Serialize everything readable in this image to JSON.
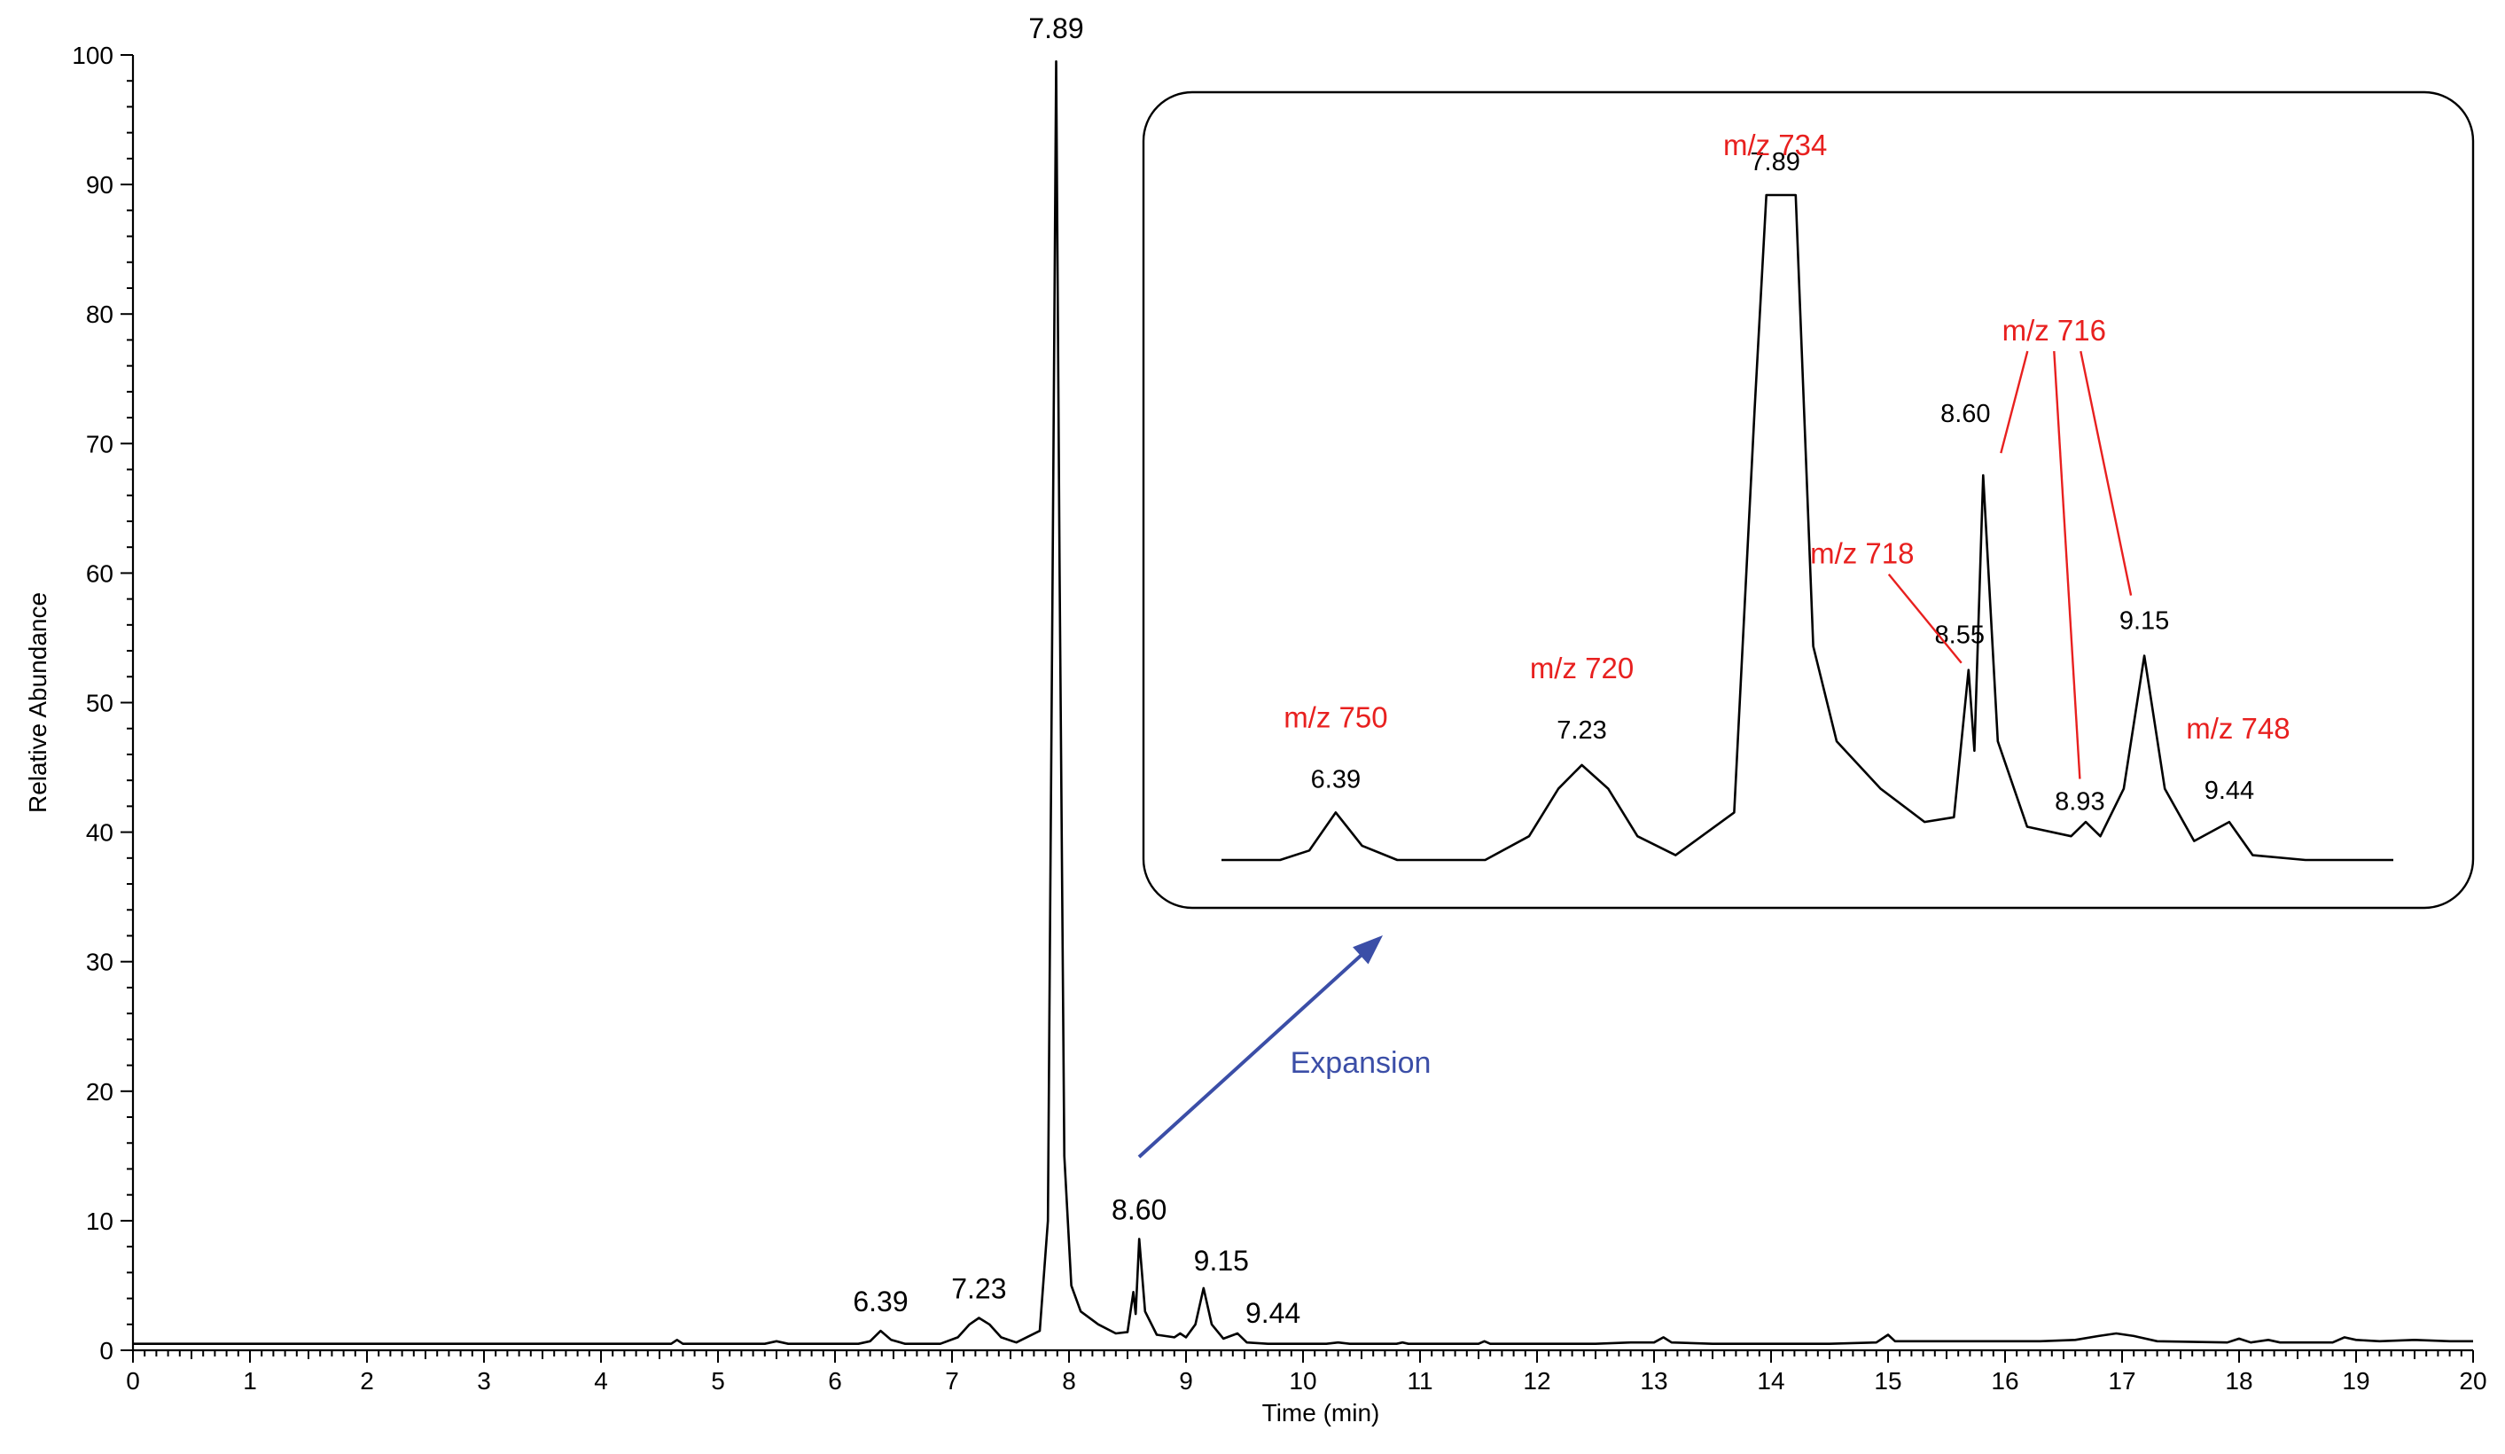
{
  "chart_data": {
    "type": "line",
    "xlabel": "Time (min)",
    "ylabel": "Relative Abundance",
    "xlim": [
      0,
      20
    ],
    "ylim": [
      0,
      100
    ],
    "x_ticks": [
      0,
      1,
      2,
      3,
      4,
      5,
      6,
      7,
      8,
      9,
      10,
      11,
      12,
      13,
      14,
      15,
      16,
      17,
      18,
      19,
      20
    ],
    "y_ticks": [
      0,
      10,
      20,
      30,
      40,
      50,
      60,
      70,
      80,
      90,
      100
    ],
    "grid": false,
    "series": [
      {
        "points": [
          [
            0,
            0.5
          ],
          [
            4.6,
            0.5
          ],
          [
            4.65,
            0.8
          ],
          [
            4.7,
            0.5
          ],
          [
            5.4,
            0.5
          ],
          [
            5.5,
            0.7
          ],
          [
            5.6,
            0.5
          ],
          [
            6.2,
            0.5
          ],
          [
            6.3,
            0.7
          ],
          [
            6.39,
            1.5
          ],
          [
            6.48,
            0.8
          ],
          [
            6.6,
            0.5
          ],
          [
            6.9,
            0.5
          ],
          [
            7.05,
            1.0
          ],
          [
            7.15,
            2.0
          ],
          [
            7.23,
            2.5
          ],
          [
            7.32,
            2.0
          ],
          [
            7.42,
            1.0
          ],
          [
            7.55,
            0.6
          ],
          [
            7.75,
            1.5
          ],
          [
            7.82,
            10
          ],
          [
            7.86,
            60
          ],
          [
            7.89,
            99.5
          ],
          [
            7.92,
            60
          ],
          [
            7.96,
            15
          ],
          [
            8.02,
            5
          ],
          [
            8.1,
            3
          ],
          [
            8.25,
            2
          ],
          [
            8.4,
            1.3
          ],
          [
            8.5,
            1.4
          ],
          [
            8.55,
            4.5
          ],
          [
            8.57,
            2.8
          ],
          [
            8.6,
            8.6
          ],
          [
            8.65,
            3.0
          ],
          [
            8.75,
            1.2
          ],
          [
            8.9,
            1.0
          ],
          [
            8.95,
            1.3
          ],
          [
            9.0,
            1.0
          ],
          [
            9.08,
            2.0
          ],
          [
            9.15,
            4.8
          ],
          [
            9.22,
            2.0
          ],
          [
            9.32,
            0.9
          ],
          [
            9.44,
            1.3
          ],
          [
            9.52,
            0.6
          ],
          [
            9.7,
            0.5
          ],
          [
            10.2,
            0.5
          ],
          [
            10.3,
            0.6
          ],
          [
            10.4,
            0.5
          ],
          [
            10.8,
            0.5
          ],
          [
            10.85,
            0.6
          ],
          [
            10.9,
            0.5
          ],
          [
            11.5,
            0.5
          ],
          [
            11.55,
            0.7
          ],
          [
            11.6,
            0.5
          ],
          [
            12.5,
            0.5
          ],
          [
            12.8,
            0.6
          ],
          [
            13.0,
            0.6
          ],
          [
            13.08,
            1.0
          ],
          [
            13.15,
            0.6
          ],
          [
            13.5,
            0.5
          ],
          [
            14.5,
            0.5
          ],
          [
            14.9,
            0.6
          ],
          [
            15.0,
            1.2
          ],
          [
            15.06,
            0.7
          ],
          [
            15.5,
            0.7
          ],
          [
            16.3,
            0.7
          ],
          [
            16.6,
            0.8
          ],
          [
            16.8,
            1.1
          ],
          [
            16.95,
            1.3
          ],
          [
            17.1,
            1.1
          ],
          [
            17.3,
            0.7
          ],
          [
            17.9,
            0.6
          ],
          [
            18.0,
            0.9
          ],
          [
            18.1,
            0.6
          ],
          [
            18.25,
            0.8
          ],
          [
            18.35,
            0.6
          ],
          [
            18.8,
            0.6
          ],
          [
            18.9,
            1.0
          ],
          [
            19.0,
            0.8
          ],
          [
            19.2,
            0.7
          ],
          [
            19.5,
            0.8
          ],
          [
            19.8,
            0.7
          ],
          [
            20,
            0.7
          ]
        ]
      }
    ],
    "peak_labels": [
      {
        "x": 6.39,
        "label": "6.39"
      },
      {
        "x": 7.23,
        "label": "7.23"
      },
      {
        "x": 7.89,
        "label": "7.89"
      },
      {
        "x": 8.6,
        "label": "8.60"
      },
      {
        "x": 9.15,
        "label": "9.15"
      },
      {
        "x": 9.44,
        "label": "9.44"
      }
    ],
    "inset": {
      "xlim": [
        6.0,
        10.0
      ],
      "ylim": [
        0,
        14
      ],
      "annotation": "Expansion",
      "peak_labels": [
        {
          "x": 6.39,
          "label": "6.39",
          "mz": "m/z 750"
        },
        {
          "x": 7.23,
          "label": "7.23",
          "mz": "m/z 720"
        },
        {
          "x": 7.89,
          "label": "7.89",
          "mz": "m/z 734"
        },
        {
          "x": 8.55,
          "label": "8.55",
          "mz": "m/z 718"
        },
        {
          "x": 8.6,
          "label": "8.60",
          "mz": "m/z 716"
        },
        {
          "x": 8.93,
          "label": "8.93",
          "mz": "m/z 716"
        },
        {
          "x": 9.15,
          "label": "9.15",
          "mz": "m/z 716"
        },
        {
          "x": 9.44,
          "label": "9.44",
          "mz": "m/z 748"
        }
      ],
      "mz_labels": [
        "m/z 750",
        "m/z 720",
        "m/z 734",
        "m/z 718",
        "m/z 716",
        "m/z 748"
      ]
    },
    "colors": {
      "trace": "#000000",
      "mz_label": "#e8201f",
      "expansion_arrow": "#3b4ea7"
    }
  }
}
